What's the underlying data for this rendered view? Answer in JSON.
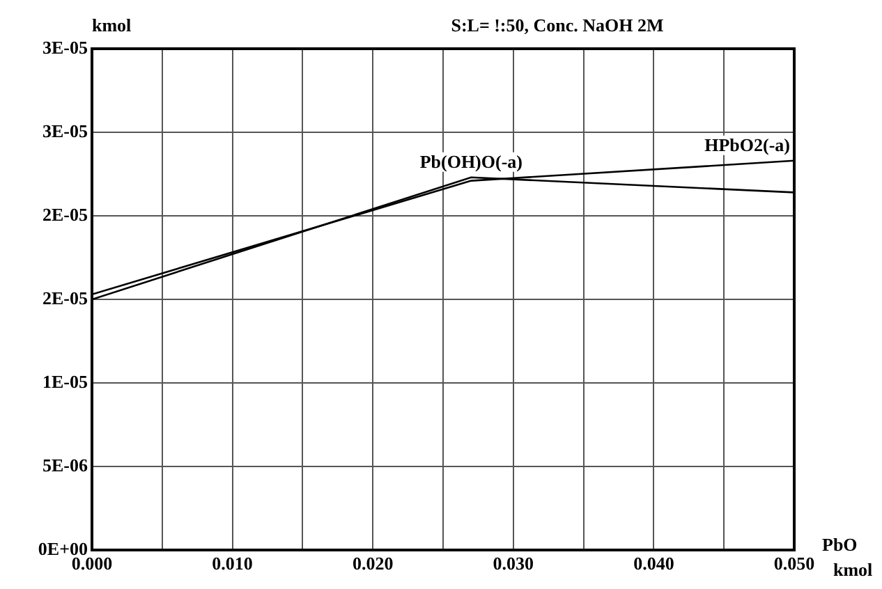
{
  "chart_data": {
    "type": "line",
    "title": "S:L= !:50, Conc. NaOH 2M",
    "ylabel": "kmol",
    "xlabel": "PbO kmol",
    "series": [
      {
        "name": "Pb(OH)O(-a)",
        "color": "#000000",
        "x": [
          0,
          0.027,
          0.05
        ],
        "values": [
          1.5e-05,
          2.23e-05,
          2.14e-05
        ]
      },
      {
        "name": "HPbO2(-a)",
        "color": "#000000",
        "x": [
          0,
          0.027,
          0.05
        ],
        "values": [
          1.53e-05,
          2.21e-05,
          2.33e-05
        ]
      }
    ],
    "xlim": [
      0,
      0.05
    ],
    "xticks": [
      {
        "value": 0,
        "label": "0.000"
      },
      {
        "value": 0.005,
        "label": null
      },
      {
        "value": 0.01,
        "label": "0.010"
      },
      {
        "value": 0.015,
        "label": null
      },
      {
        "value": 0.02,
        "label": "0.020"
      },
      {
        "value": 0.025,
        "label": null
      },
      {
        "value": 0.03,
        "label": "0.030"
      },
      {
        "value": 0.035,
        "label": null
      },
      {
        "value": 0.04,
        "label": "0.040"
      },
      {
        "value": 0.045,
        "label": null
      },
      {
        "value": 0.05,
        "label": "0.050"
      }
    ],
    "ylim": [
      0,
      3e-05
    ],
    "yticks": [
      {
        "value": 0,
        "label": "0E+00"
      },
      {
        "value": 5e-06,
        "label": "5E-06"
      },
      {
        "value": 1e-05,
        "label": "1E-05"
      },
      {
        "value": 1.5e-05,
        "label": "2E-05"
      },
      {
        "value": 2e-05,
        "label": "2E-05"
      },
      {
        "value": 2.5e-05,
        "label": "3E-05"
      },
      {
        "value": 3e-05,
        "label": "3E-05"
      }
    ],
    "grid": true,
    "legend": false,
    "marker": "none",
    "line_style": "solid"
  }
}
